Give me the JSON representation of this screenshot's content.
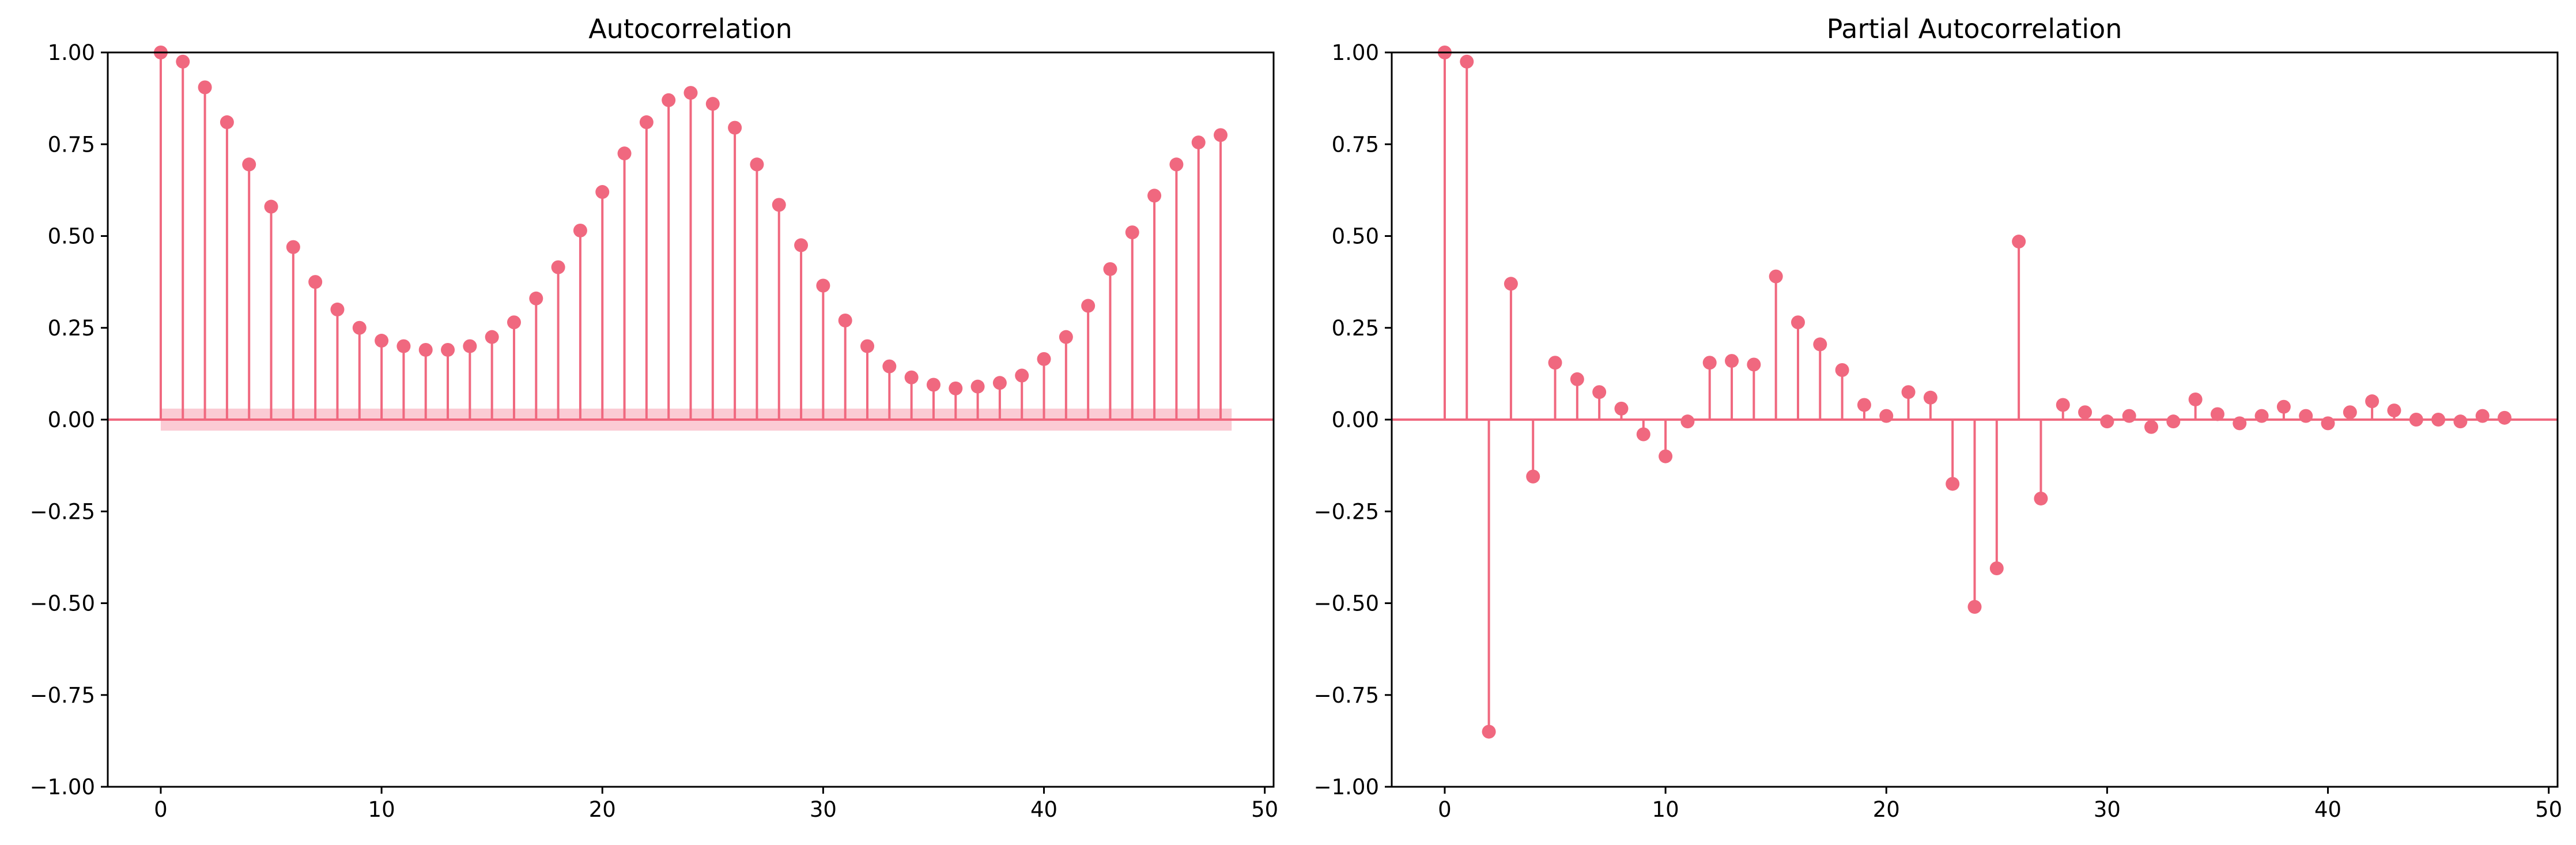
{
  "colors": {
    "series": "#f0687f",
    "band": "#f9b9c5",
    "axis": "#000000",
    "background": "#ffffff"
  },
  "chart_data": [
    {
      "type": "stem",
      "title": "Autocorrelation",
      "xlabel": "",
      "ylabel": "",
      "xlim": [
        -2.4,
        50.4
      ],
      "ylim": [
        -1.0,
        1.0
      ],
      "x_ticks": [
        0,
        10,
        20,
        30,
        40,
        50
      ],
      "x_tick_labels": [
        "0",
        "10",
        "20",
        "30",
        "40",
        "50"
      ],
      "y_ticks": [
        1.0,
        0.75,
        0.5,
        0.25,
        0.0,
        -0.25,
        -0.5,
        -0.75,
        -1.0
      ],
      "y_tick_labels": [
        "1.00",
        "0.75",
        "0.50",
        "0.25",
        "0.00",
        "−0.25",
        "−0.50",
        "−0.75",
        "−1.00"
      ],
      "grid": false,
      "confidence_band": {
        "lags": [
          0,
          48.5
        ],
        "upper": 0.03,
        "lower": -0.03
      },
      "lags": [
        0,
        1,
        2,
        3,
        4,
        5,
        6,
        7,
        8,
        9,
        10,
        11,
        12,
        13,
        14,
        15,
        16,
        17,
        18,
        19,
        20,
        21,
        22,
        23,
        24,
        25,
        26,
        27,
        28,
        29,
        30,
        31,
        32,
        33,
        34,
        35,
        36,
        37,
        38,
        39,
        40,
        41,
        42,
        43,
        44,
        45,
        46,
        47,
        48
      ],
      "values": [
        1.0,
        0.975,
        0.905,
        0.81,
        0.695,
        0.58,
        0.47,
        0.375,
        0.3,
        0.25,
        0.215,
        0.2,
        0.19,
        0.19,
        0.2,
        0.225,
        0.265,
        0.33,
        0.415,
        0.515,
        0.62,
        0.725,
        0.81,
        0.87,
        0.89,
        0.86,
        0.795,
        0.695,
        0.585,
        0.475,
        0.365,
        0.27,
        0.2,
        0.145,
        0.115,
        0.095,
        0.085,
        0.09,
        0.1,
        0.12,
        0.165,
        0.225,
        0.31,
        0.41,
        0.51,
        0.61,
        0.695,
        0.755,
        0.775
      ]
    },
    {
      "type": "stem",
      "title": "Partial Autocorrelation",
      "xlabel": "",
      "ylabel": "",
      "xlim": [
        -2.4,
        50.4
      ],
      "ylim": [
        -1.0,
        1.0
      ],
      "x_ticks": [
        0,
        10,
        20,
        30,
        40,
        50
      ],
      "x_tick_labels": [
        "0",
        "10",
        "20",
        "30",
        "40",
        "50"
      ],
      "y_ticks": [
        1.0,
        0.75,
        0.5,
        0.25,
        0.0,
        -0.25,
        -0.5,
        -0.75,
        -1.0
      ],
      "y_tick_labels": [
        "1.00",
        "0.75",
        "0.50",
        "0.25",
        "0.00",
        "−0.25",
        "−0.50",
        "−0.75",
        "−1.00"
      ],
      "grid": false,
      "lags": [
        0,
        1,
        2,
        3,
        4,
        5,
        6,
        7,
        8,
        9,
        10,
        11,
        12,
        13,
        14,
        15,
        16,
        17,
        18,
        19,
        20,
        21,
        22,
        23,
        24,
        25,
        26,
        27,
        28,
        29,
        30,
        31,
        32,
        33,
        34,
        35,
        36,
        37,
        38,
        39,
        40,
        41,
        42,
        43,
        44,
        45,
        46,
        47,
        48
      ],
      "values": [
        1.0,
        0.975,
        -0.85,
        0.37,
        -0.155,
        0.155,
        0.11,
        0.075,
        0.03,
        -0.04,
        -0.1,
        -0.005,
        0.155,
        0.16,
        0.15,
        0.39,
        0.265,
        0.205,
        0.135,
        0.04,
        0.01,
        0.075,
        0.06,
        -0.175,
        -0.51,
        -0.405,
        0.485,
        -0.215,
        0.04,
        0.02,
        -0.005,
        0.01,
        -0.02,
        -0.005,
        0.055,
        0.015,
        -0.01,
        0.01,
        0.035,
        0.01,
        -0.01,
        0.02,
        0.05,
        0.025,
        0.0,
        0.0,
        -0.005,
        0.01,
        0.005
      ]
    }
  ]
}
